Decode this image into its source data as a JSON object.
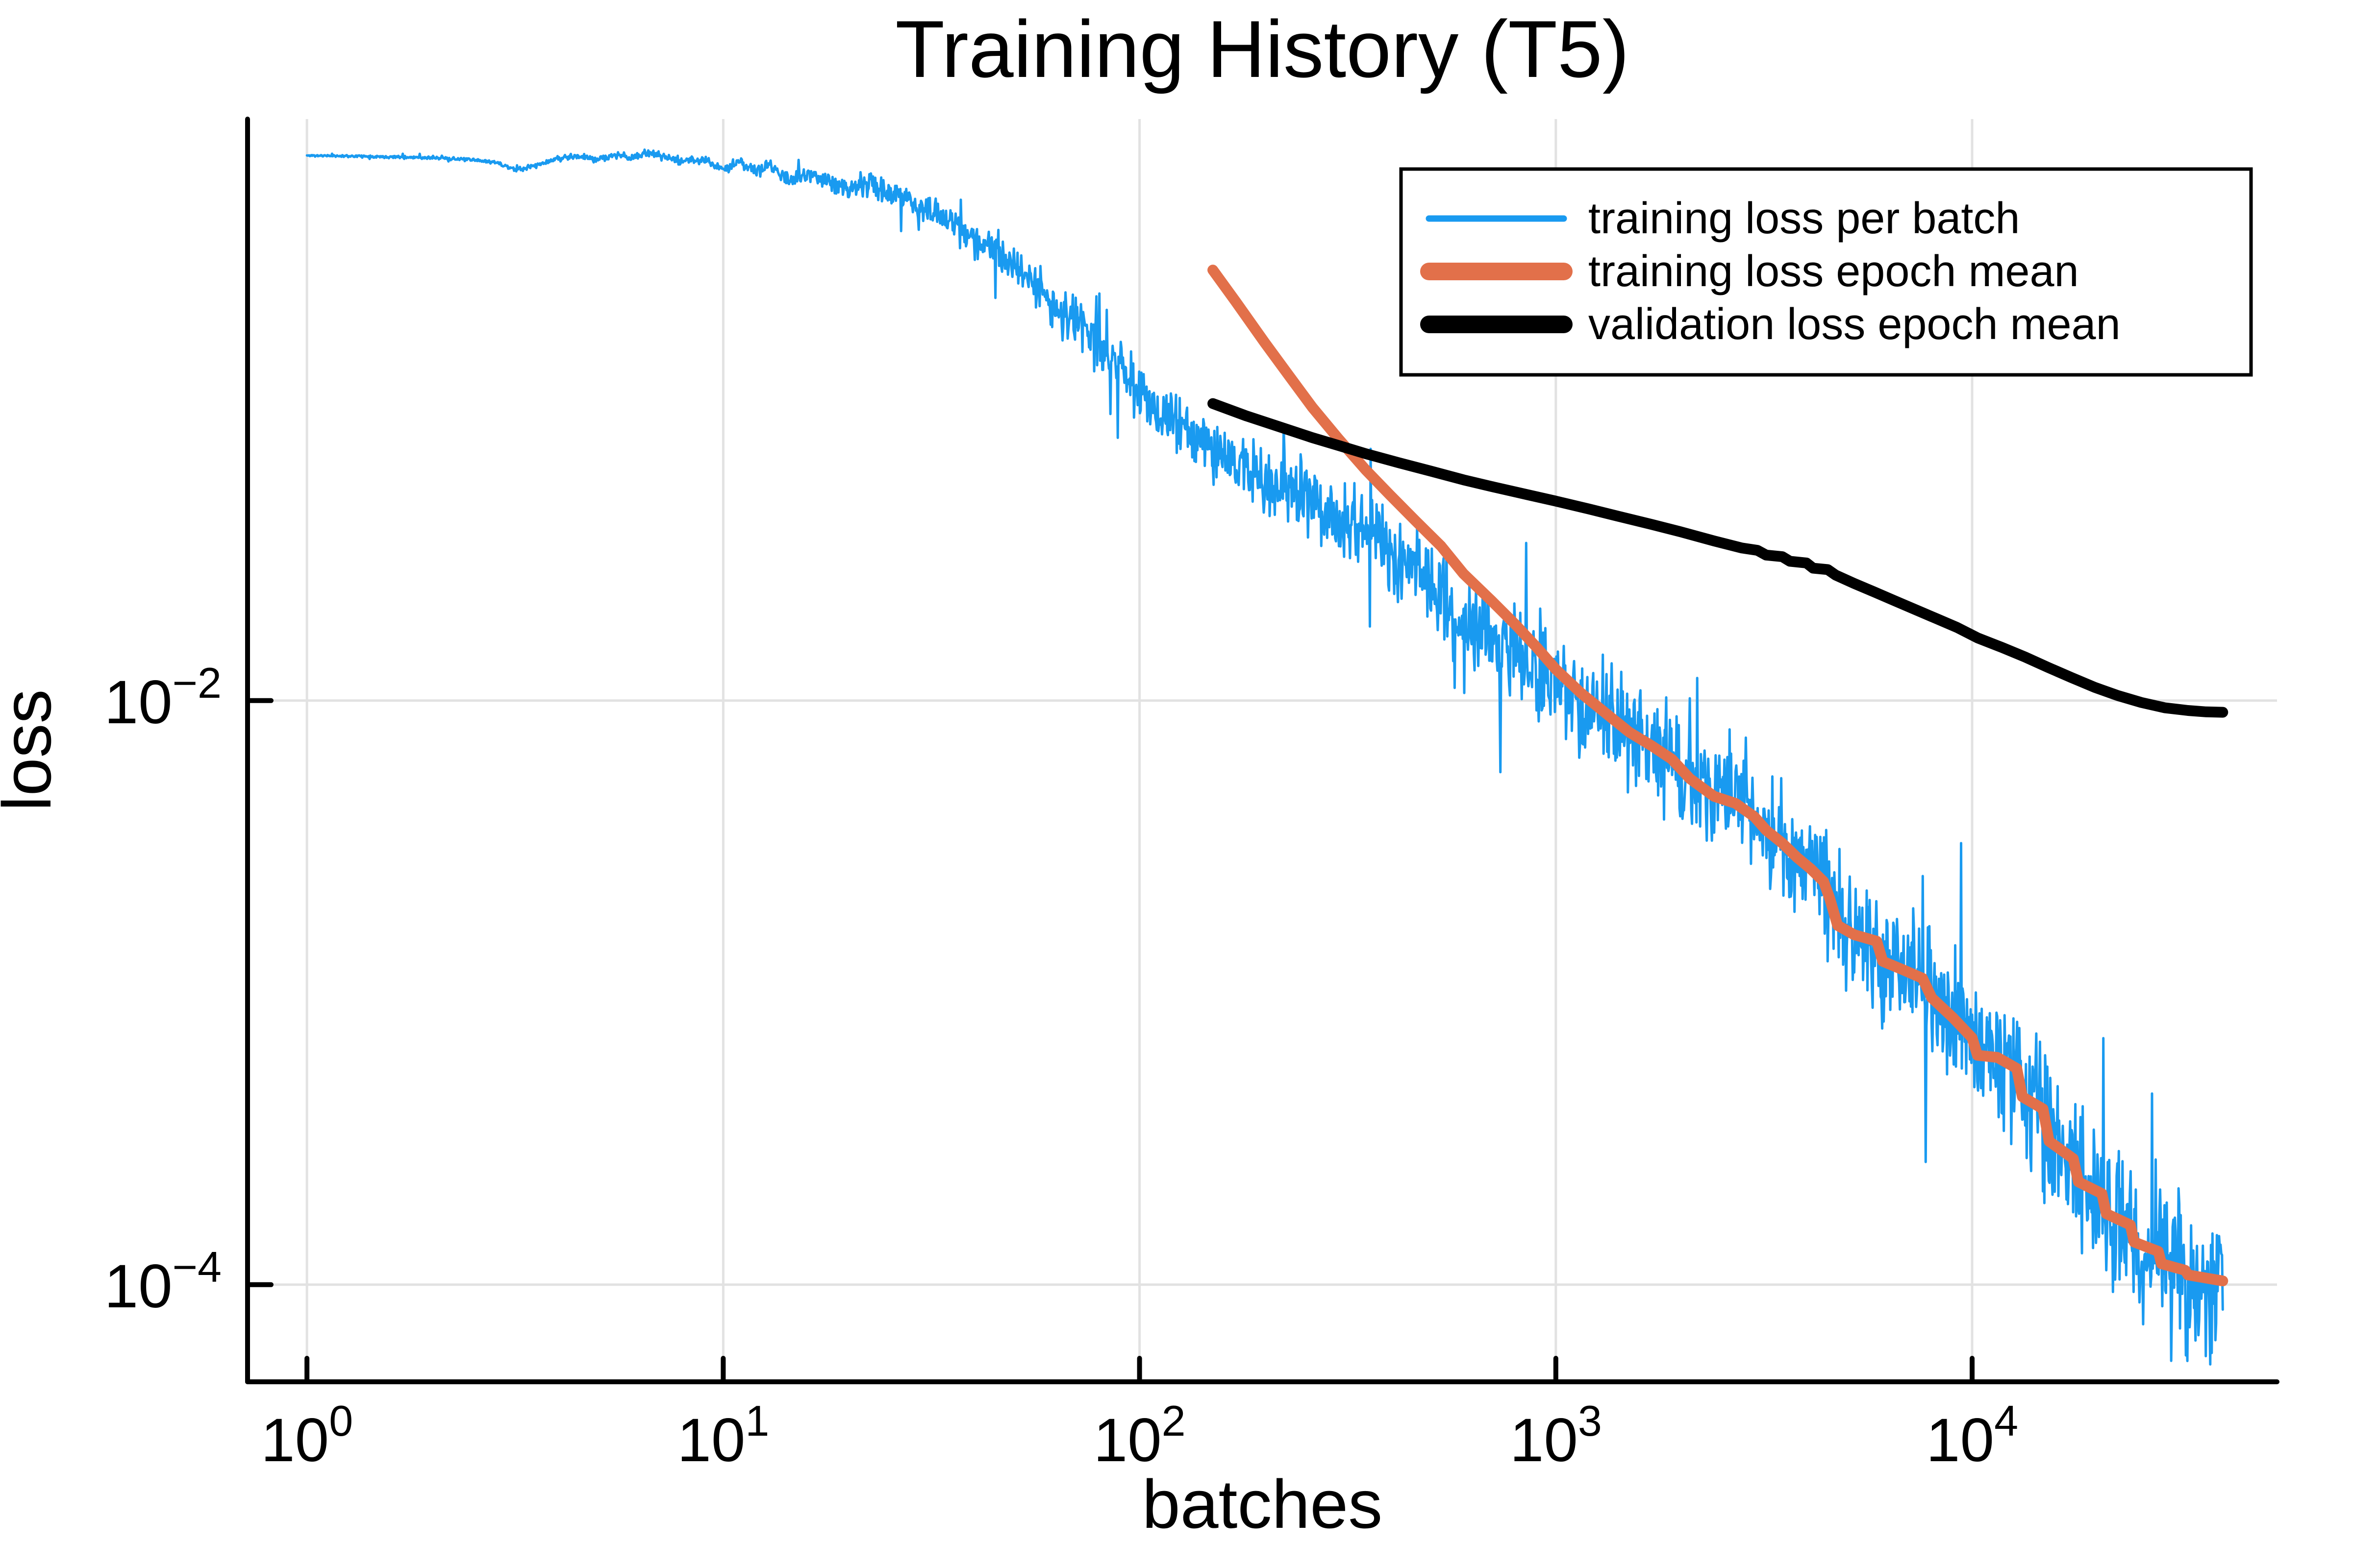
{
  "chart_data": {
    "type": "line",
    "title": "Training History (T5)",
    "xlabel": "batches",
    "ylabel": "loss",
    "xscale": "log",
    "yscale": "log",
    "xlim": [
      0.72,
      54000
    ],
    "ylim": [
      4.65e-05,
      0.98
    ],
    "grid": true,
    "legend_position": "top-right",
    "x_ticks": [
      {
        "value": 1,
        "base": "10",
        "exp": "0"
      },
      {
        "value": 10,
        "base": "10",
        "exp": "1"
      },
      {
        "value": 100,
        "base": "10",
        "exp": "2"
      },
      {
        "value": 1000,
        "base": "10",
        "exp": "3"
      },
      {
        "value": 10000,
        "base": "10",
        "exp": "4"
      }
    ],
    "y_ticks": [
      {
        "value": 0.01,
        "base": "10",
        "exp": "−2"
      },
      {
        "value": 0.0001,
        "base": "10",
        "exp": "−4"
      }
    ],
    "series": [
      {
        "name": "training loss per batch",
        "color": "#199AF0",
        "stroke_width": 5,
        "style": "noisy",
        "noise": {
          "seed": 11,
          "n_points": 2600,
          "spike_prob": 0.012,
          "amp_profile": [
            [
              0,
              0.003
            ],
            [
              0.5,
              0.007
            ],
            [
              1,
              0.016
            ],
            [
              1.5,
              0.05
            ],
            [
              2,
              0.095
            ],
            [
              2.5,
              0.135
            ],
            [
              3,
              0.175
            ],
            [
              3.5,
              0.205
            ],
            [
              4,
              0.235
            ],
            [
              4.62,
              0.25
            ]
          ]
        },
        "points": [
          [
            1,
            0.735
          ],
          [
            1.3,
            0.732
          ],
          [
            1.6,
            0.728
          ],
          [
            2,
            0.722
          ],
          [
            2.4,
            0.712
          ],
          [
            2.8,
            0.7
          ],
          [
            3.2,
            0.654
          ],
          [
            3.6,
            0.684
          ],
          [
            4,
            0.718
          ],
          [
            4.5,
            0.732
          ],
          [
            5,
            0.713
          ],
          [
            5.5,
            0.738
          ],
          [
            6,
            0.722
          ],
          [
            6.6,
            0.751
          ],
          [
            7.2,
            0.733
          ],
          [
            8,
            0.7
          ],
          [
            9,
            0.714
          ],
          [
            10,
            0.662
          ],
          [
            11,
            0.692
          ],
          [
            12,
            0.653
          ],
          [
            13,
            0.678
          ],
          [
            14.5,
            0.598
          ],
          [
            16,
            0.645
          ],
          [
            18,
            0.598
          ],
          [
            20,
            0.565
          ],
          [
            22,
            0.588
          ],
          [
            25,
            0.545
          ],
          [
            28,
            0.515
          ],
          [
            32,
            0.468
          ],
          [
            36,
            0.422
          ],
          [
            40,
            0.383
          ],
          [
            45,
            0.342
          ],
          [
            50,
            0.307
          ],
          [
            57,
            0.258
          ],
          [
            65,
            0.218
          ],
          [
            75,
            0.182
          ],
          [
            85,
            0.148
          ],
          [
            100,
            0.112
          ],
          [
            115,
            0.0945
          ],
          [
            130,
            0.082
          ],
          [
            150,
            0.072
          ],
          [
            175,
            0.063
          ],
          [
            200,
            0.057
          ],
          [
            230,
            0.051
          ],
          [
            260,
            0.047
          ],
          [
            300,
            0.0425
          ],
          [
            350,
            0.037
          ],
          [
            400,
            0.0325
          ],
          [
            460,
            0.0285
          ],
          [
            530,
            0.0235
          ],
          [
            600,
            0.019
          ],
          [
            700,
            0.0163
          ],
          [
            800,
            0.0142
          ],
          [
            900,
            0.0126
          ],
          [
            1000,
            0.0113
          ],
          [
            1150,
            0.0099
          ],
          [
            1300,
            0.0089
          ],
          [
            1500,
            0.0078
          ],
          [
            1700,
            0.007
          ],
          [
            1900,
            0.0063
          ],
          [
            2100,
            0.0054
          ],
          [
            2400,
            0.0047
          ],
          [
            2700,
            0.00445
          ],
          [
            3000,
            0.004
          ],
          [
            3200,
            0.0036
          ],
          [
            3500,
            0.00325
          ],
          [
            3800,
            0.0029
          ],
          [
            4100,
            0.00265
          ],
          [
            4400,
            0.0024
          ],
          [
            4550,
            0.0021
          ],
          [
            4750,
            0.0017
          ],
          [
            5200,
            0.00158
          ],
          [
            5900,
            0.0015
          ],
          [
            6100,
            0.00128
          ],
          [
            6800,
            0.0012
          ],
          [
            7600,
            0.00112
          ],
          [
            8000,
            0.00096
          ],
          [
            9000,
            0.00082
          ],
          [
            10000,
            0.0007
          ],
          [
            10300,
            0.00061
          ],
          [
            11500,
            0.0006
          ],
          [
            12800,
            0.00055
          ],
          [
            13200,
            0.00044
          ],
          [
            14800,
            0.0004
          ],
          [
            15300,
            0.00031
          ],
          [
            17500,
            0.00027
          ],
          [
            18000,
            0.000225
          ],
          [
            20500,
            0.000205
          ],
          [
            21000,
            0.000175
          ],
          [
            24000,
            0.00016
          ],
          [
            24500,
            0.00014
          ],
          [
            28000,
            0.00013
          ],
          [
            28500,
            0.000118
          ],
          [
            32500,
            0.000112
          ],
          [
            33000,
            0.000108
          ],
          [
            37000,
            0.000105
          ],
          [
            40000,
            0.000103
          ]
        ]
      },
      {
        "name": "training loss epoch mean",
        "color": "#E2704A",
        "stroke_width": 22,
        "style": "smooth",
        "points": [
          [
            150,
            0.298
          ],
          [
            170,
            0.233
          ],
          [
            200,
            0.168
          ],
          [
            230,
            0.128
          ],
          [
            260,
            0.101
          ],
          [
            300,
            0.079
          ],
          [
            350,
            0.0615
          ],
          [
            400,
            0.0505
          ],
          [
            460,
            0.0413
          ],
          [
            530,
            0.0338
          ],
          [
            600,
            0.0272
          ],
          [
            700,
            0.022
          ],
          [
            800,
            0.0182
          ],
          [
            900,
            0.0152
          ],
          [
            1000,
            0.0128
          ],
          [
            1150,
            0.0106
          ],
          [
            1300,
            0.0092
          ],
          [
            1500,
            0.0078
          ],
          [
            1700,
            0.007
          ],
          [
            1900,
            0.0063
          ],
          [
            2100,
            0.0054
          ],
          [
            2400,
            0.0047
          ],
          [
            2700,
            0.00445
          ],
          [
            3000,
            0.004
          ],
          [
            3200,
            0.0036
          ],
          [
            3500,
            0.00325
          ],
          [
            3800,
            0.0029
          ],
          [
            4100,
            0.00265
          ],
          [
            4400,
            0.0024
          ],
          [
            4550,
            0.0021
          ],
          [
            4750,
            0.0017
          ],
          [
            5200,
            0.00158
          ],
          [
            5900,
            0.0015
          ],
          [
            6100,
            0.00128
          ],
          [
            6800,
            0.0012
          ],
          [
            7600,
            0.00112
          ],
          [
            8000,
            0.00096
          ],
          [
            9000,
            0.00082
          ],
          [
            10000,
            0.0007
          ],
          [
            10300,
            0.00061
          ],
          [
            11500,
            0.0006
          ],
          [
            12800,
            0.00055
          ],
          [
            13200,
            0.00044
          ],
          [
            14800,
            0.0004
          ],
          [
            15300,
            0.00031
          ],
          [
            17500,
            0.00027
          ],
          [
            18000,
            0.000225
          ],
          [
            20500,
            0.000205
          ],
          [
            21000,
            0.000175
          ],
          [
            24000,
            0.00016
          ],
          [
            24500,
            0.00014
          ],
          [
            28000,
            0.00013
          ],
          [
            28500,
            0.000118
          ],
          [
            32500,
            0.000112
          ],
          [
            33000,
            0.000108
          ],
          [
            37000,
            0.000105
          ],
          [
            40000,
            0.000103
          ]
        ]
      },
      {
        "name": "validation loss epoch mean",
        "color": "#000000",
        "stroke_width": 22,
        "style": "smooth",
        "points": [
          [
            150,
            0.104
          ],
          [
            180,
            0.0945
          ],
          [
            220,
            0.086
          ],
          [
            260,
            0.0795
          ],
          [
            300,
            0.0748
          ],
          [
            350,
            0.07
          ],
          [
            420,
            0.0652
          ],
          [
            500,
            0.0611
          ],
          [
            600,
            0.057
          ],
          [
            700,
            0.0541
          ],
          [
            850,
            0.0508
          ],
          [
            1000,
            0.0482
          ],
          [
            1200,
            0.0453
          ],
          [
            1400,
            0.0429
          ],
          [
            1700,
            0.0401
          ],
          [
            2000,
            0.0378
          ],
          [
            2400,
            0.0352
          ],
          [
            2800,
            0.0333
          ],
          [
            3050,
            0.0327
          ],
          [
            3200,
            0.0315
          ],
          [
            3500,
            0.0311
          ],
          [
            3650,
            0.03
          ],
          [
            4000,
            0.0296
          ],
          [
            4150,
            0.0284
          ],
          [
            4500,
            0.0281
          ],
          [
            4700,
            0.0269
          ],
          [
            5200,
            0.0252
          ],
          [
            5800,
            0.0236
          ],
          [
            6500,
            0.022
          ],
          [
            7300,
            0.0205
          ],
          [
            8200,
            0.0191
          ],
          [
            9200,
            0.0178
          ],
          [
            10300,
            0.0164
          ],
          [
            11800,
            0.0152
          ],
          [
            13400,
            0.0141
          ],
          [
            15200,
            0.013
          ],
          [
            17300,
            0.012
          ],
          [
            19700,
            0.0111
          ],
          [
            22400,
            0.0104
          ],
          [
            25500,
            0.00985
          ],
          [
            29000,
            0.00945
          ],
          [
            33000,
            0.00925
          ],
          [
            36500,
            0.00915
          ],
          [
            40000,
            0.00912
          ]
        ]
      }
    ]
  },
  "colors": {
    "grid": "#E2E2E2",
    "spine": "#000000",
    "background": "#FFFFFF",
    "series_blue": "#199AF0",
    "series_orange": "#E2704A",
    "series_black": "#000000"
  }
}
